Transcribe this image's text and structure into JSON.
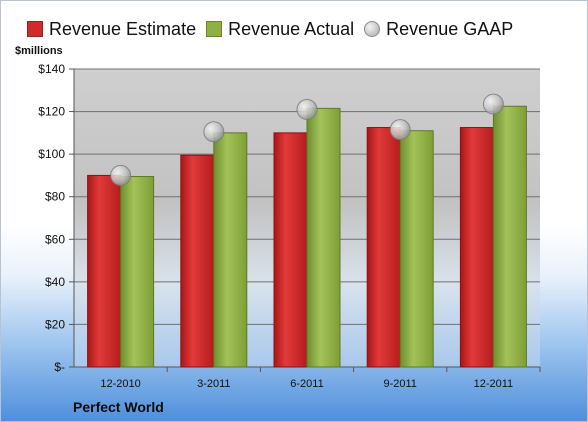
{
  "chart_data": {
    "type": "bar",
    "categories": [
      "12-2010",
      "3-2011",
      "6-2011",
      "9-2011",
      "12-2011"
    ],
    "series": [
      {
        "name": "Revenue Estimate",
        "kind": "bar",
        "color": "#d12a2a",
        "values": [
          90,
          99.5,
          110,
          112.5,
          112.5
        ]
      },
      {
        "name": "Revenue Actual",
        "kind": "bar",
        "color": "#8fb043",
        "values": [
          89.5,
          110,
          121.5,
          111,
          122.5
        ]
      },
      {
        "name": "Revenue GAAP",
        "kind": "marker",
        "color": "#b9b9b9",
        "values": [
          90,
          110.5,
          121,
          111.5,
          123.5
        ]
      }
    ],
    "ylabel": "$millions",
    "ylim": [
      0,
      140
    ],
    "yticks": [
      0,
      20,
      40,
      60,
      80,
      100,
      120,
      140
    ],
    "ytick_labels": [
      "$-",
      "$20",
      "$40",
      "$60",
      "$80",
      "$100",
      "$120",
      "$140"
    ],
    "grid": true,
    "legend_position": "top"
  },
  "footer": {
    "company": "Perfect World"
  }
}
